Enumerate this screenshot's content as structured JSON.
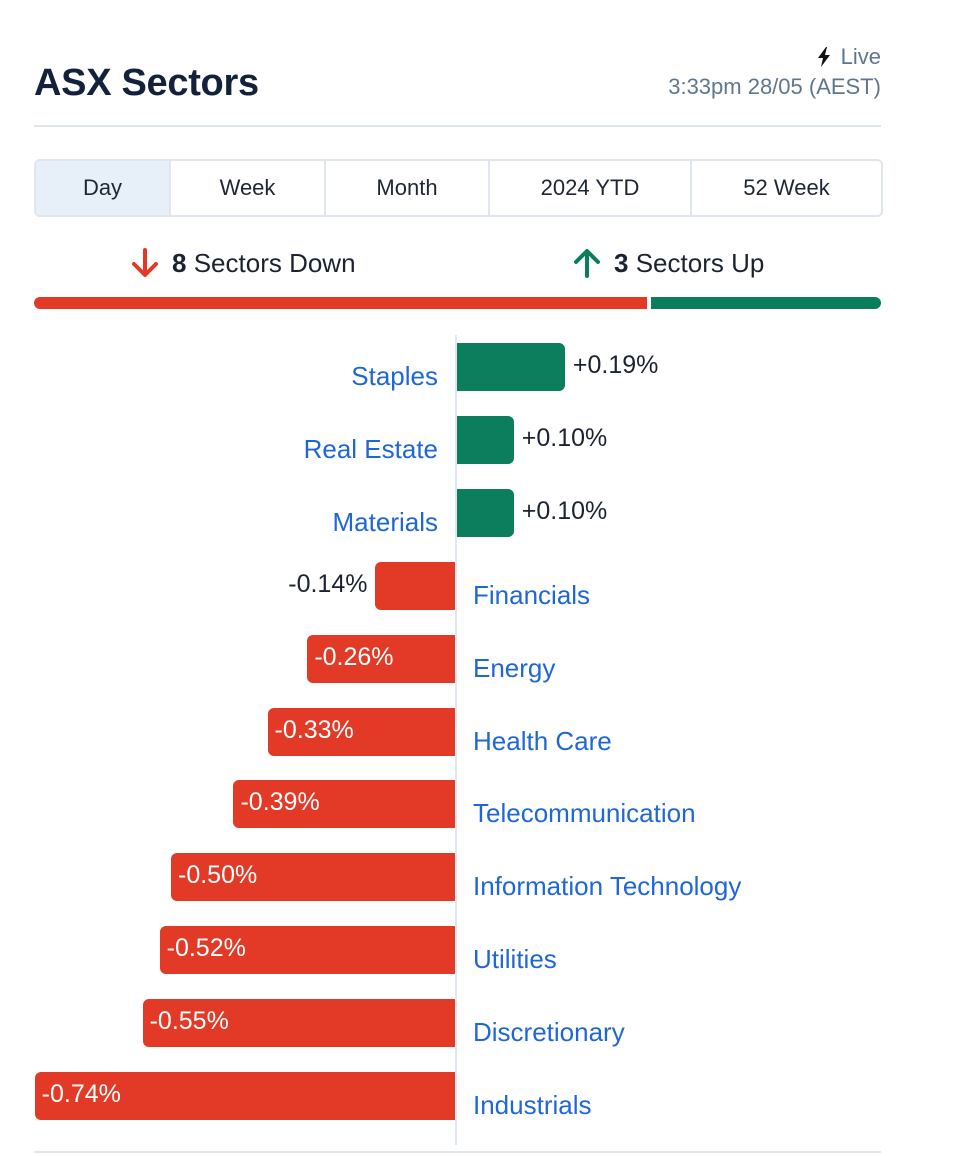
{
  "header": {
    "title": "ASX Sectors",
    "live_label": "Live",
    "timestamp": "3:33pm 28/05 (AEST)"
  },
  "tabs": [
    {
      "label": "Day",
      "active": true
    },
    {
      "label": "Week",
      "active": false
    },
    {
      "label": "Month",
      "active": false
    },
    {
      "label": "2024 YTD",
      "active": false
    },
    {
      "label": "52 Week",
      "active": false
    }
  ],
  "summary": {
    "down_count": "8",
    "down_text": "Sectors Down",
    "up_count": "3",
    "up_text": "Sectors Up"
  },
  "colors": {
    "positive": "#0c7e5d",
    "negative": "#e23a26",
    "link": "#1f67d6"
  },
  "icons": {
    "live": "lightning-bolt-icon",
    "down": "arrow-down-icon",
    "up": "arrow-up-icon"
  },
  "chart_data": {
    "type": "bar",
    "orientation": "horizontal-diverging",
    "unit": "%",
    "categories": [
      "Staples",
      "Real Estate",
      "Materials",
      "Financials",
      "Energy",
      "Health Care",
      "Telecommunication",
      "Information Technology",
      "Utilities",
      "Discretionary",
      "Industrials"
    ],
    "values": [
      0.19,
      0.1,
      0.1,
      -0.14,
      -0.26,
      -0.33,
      -0.39,
      -0.5,
      -0.52,
      -0.55,
      -0.74
    ],
    "value_labels": [
      "+0.19%",
      "+0.10%",
      "+0.10%",
      "-0.14%",
      "-0.26%",
      "-0.33%",
      "-0.39%",
      "-0.50%",
      "-0.52%",
      "-0.55%",
      "-0.74%"
    ]
  }
}
